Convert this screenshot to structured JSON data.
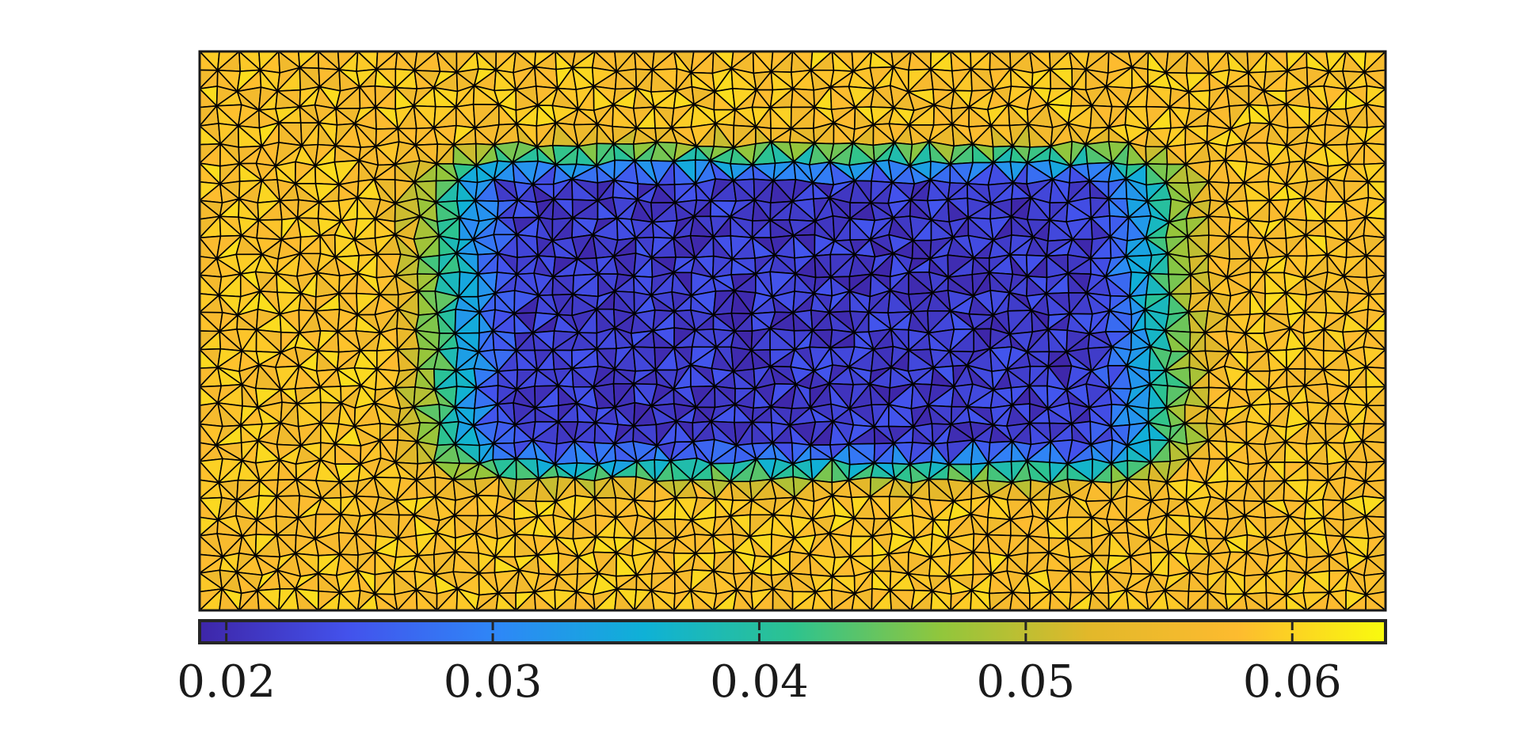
{
  "chart_data": {
    "type": "heatmap",
    "title": "",
    "xlabel": "",
    "ylabel": "",
    "grid": false,
    "legend": "none",
    "colormap": "parula",
    "colormap_stops": [
      "#3e26a8",
      "#4352ec",
      "#2e87f7",
      "#0fb1d6",
      "#2dc38f",
      "#91c63c",
      "#e2b82a",
      "#fdbb2f",
      "#f9fb0e"
    ],
    "edge_color": "#000000",
    "colorbar": {
      "orientation": "horizontal",
      "placement": "bottom",
      "range": [
        0.019,
        0.0635
      ],
      "ticks": [
        0.02,
        0.03,
        0.04,
        0.05,
        0.06
      ],
      "tick_labels": [
        "0.02",
        "0.03",
        "0.04",
        "0.05",
        "0.06"
      ]
    },
    "field": {
      "description": "triangular mesh field, low values in central rectangle, high values near outer boundary",
      "min_value": 0.019,
      "max_value": 0.062,
      "inner_region_value": 0.022,
      "outer_region_value": 0.058
    }
  }
}
